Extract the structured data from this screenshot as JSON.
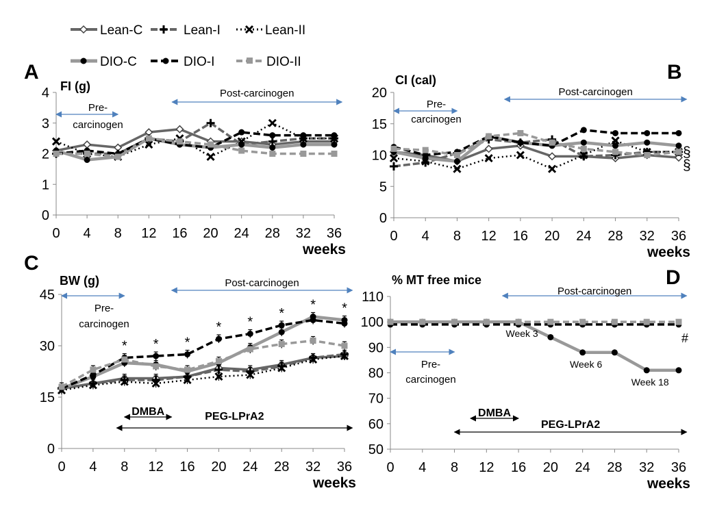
{
  "legend": {
    "row1": [
      "Lean-C",
      "Lean-I",
      "Lean-II"
    ],
    "row2": [
      "DIO-C",
      "DIO-I",
      "DIO-II"
    ]
  },
  "colors": {
    "dark_gray": "#666666",
    "black": "#000000",
    "light_gray": "#999999",
    "arrow_blue": "#4f81bd"
  },
  "labels": {
    "pre_carcinogen": [
      "Pre-",
      "carcinogen"
    ],
    "post_carcinogen": "Post-carcinogen",
    "weeks": "weeks",
    "dmba": "DMBA",
    "peg": "PEG-LPrA2"
  },
  "chart_data": [
    {
      "panel": "A",
      "type": "line",
      "ylabel": "FI (g)",
      "xlabel": "weeks",
      "x": [
        0,
        4,
        8,
        12,
        16,
        20,
        24,
        28,
        32,
        36
      ],
      "xticks": [
        "0",
        "4",
        "8",
        "12",
        "16",
        "20",
        "24",
        "28",
        "32",
        "36"
      ],
      "yticks": [
        "0",
        "1",
        "2",
        "3",
        "4"
      ],
      "ylim": [
        0,
        4
      ],
      "series": [
        {
          "name": "Lean-C",
          "values": [
            2.1,
            2.3,
            2.2,
            2.7,
            2.8,
            2.4,
            2.4,
            2.3,
            2.4,
            2.4
          ]
        },
        {
          "name": "Lean-I",
          "values": [
            2.0,
            2.0,
            2.0,
            2.5,
            2.4,
            3.0,
            2.3,
            2.4,
            2.5,
            2.5
          ]
        },
        {
          "name": "Lean-II",
          "values": [
            2.4,
            2.0,
            1.9,
            2.3,
            2.5,
            1.9,
            2.4,
            3.0,
            2.5,
            2.5
          ]
        },
        {
          "name": "DIO-C",
          "values": [
            2.1,
            1.8,
            1.9,
            2.5,
            2.3,
            2.2,
            2.3,
            2.2,
            2.3,
            2.3
          ]
        },
        {
          "name": "DIO-I",
          "values": [
            2.0,
            2.1,
            2.0,
            2.5,
            2.3,
            2.2,
            2.7,
            2.6,
            2.6,
            2.6
          ]
        },
        {
          "name": "DIO-II",
          "values": [
            2.0,
            2.0,
            1.9,
            2.5,
            2.4,
            2.3,
            2.1,
            2.0,
            2.0,
            2.0
          ]
        }
      ],
      "annotations": {
        "pre_carcinogen": [
          0,
          8
        ],
        "post_carcinogen": [
          15,
          37
        ]
      }
    },
    {
      "panel": "B",
      "type": "line",
      "ylabel": "CI (cal)",
      "xlabel": "weeks",
      "x": [
        0,
        4,
        8,
        12,
        16,
        20,
        24,
        28,
        32,
        36
      ],
      "xticks": [
        "0",
        "4",
        "8",
        "12",
        "16",
        "20",
        "24",
        "28",
        "32",
        "36"
      ],
      "yticks": [
        "0",
        "5",
        "10",
        "15",
        "20"
      ],
      "ylim": [
        0,
        20
      ],
      "series": [
        {
          "name": "Lean-C",
          "values": [
            10.5,
            10.0,
            9.0,
            11.0,
            11.5,
            9.8,
            9.8,
            9.5,
            10.0,
            9.6
          ]
        },
        {
          "name": "Lean-I",
          "values": [
            8.2,
            8.8,
            10.3,
            12.5,
            12.0,
            12.5,
            9.8,
            10.0,
            10.5,
            10.5
          ]
        },
        {
          "name": "Lean-II",
          "values": [
            9.5,
            9.0,
            7.8,
            9.5,
            10.0,
            7.8,
            10.0,
            12.3,
            10.5,
            10.5
          ]
        },
        {
          "name": "DIO-C",
          "values": [
            10.5,
            9.5,
            9.0,
            13.0,
            12.0,
            11.5,
            12.0,
            11.5,
            12.0,
            11.5
          ]
        },
        {
          "name": "DIO-I",
          "values": [
            11.3,
            10.0,
            10.5,
            13.0,
            12.0,
            11.5,
            14.0,
            13.5,
            13.5,
            13.5
          ]
        },
        {
          "name": "DIO-II",
          "values": [
            11.0,
            10.8,
            10.0,
            13.0,
            13.5,
            12.0,
            11.0,
            10.5,
            10.0,
            10.5
          ]
        }
      ],
      "annotations": {
        "pre_carcinogen": [
          0,
          8
        ],
        "post_carcinogen": [
          14,
          37
        ],
        "section_marks": [
          "§",
          "§"
        ]
      }
    },
    {
      "panel": "C",
      "type": "line",
      "ylabel": "BW (g)",
      "xlabel": "weeks",
      "x": [
        0,
        4,
        8,
        12,
        16,
        20,
        24,
        28,
        32,
        36
      ],
      "xticks": [
        "0",
        "4",
        "8",
        "12",
        "16",
        "20",
        "24",
        "28",
        "32",
        "36"
      ],
      "yticks": [
        "0",
        "15",
        "30",
        "45"
      ],
      "ylim": [
        0,
        45
      ],
      "series": [
        {
          "name": "Lean-C",
          "values": [
            17.5,
            19.0,
            20.5,
            20.5,
            21.0,
            23.5,
            23.0,
            24.5,
            26.5,
            27.0
          ]
        },
        {
          "name": "Lean-I",
          "values": [
            17.5,
            19.0,
            20.0,
            20.0,
            21.0,
            23.0,
            22.5,
            24.0,
            26.5,
            27.5
          ]
        },
        {
          "name": "Lean-II",
          "values": [
            17.0,
            18.5,
            19.5,
            19.0,
            20.0,
            21.0,
            21.5,
            23.5,
            26.0,
            27.0
          ]
        },
        {
          "name": "DIO-C",
          "values": [
            17.5,
            21.0,
            25.0,
            24.5,
            22.5,
            25.0,
            29.5,
            34.0,
            38.5,
            37.5
          ]
        },
        {
          "name": "DIO-I",
          "values": [
            17.5,
            21.5,
            26.5,
            27.0,
            27.5,
            32.0,
            33.5,
            36.0,
            37.5,
            36.5
          ]
        },
        {
          "name": "DIO-II",
          "values": [
            18.0,
            23.0,
            26.0,
            24.0,
            23.0,
            25.5,
            29.0,
            30.5,
            31.5,
            30.0
          ]
        }
      ],
      "stars_at": [
        8,
        12,
        16,
        20,
        24,
        28,
        32,
        36
      ],
      "annotations": {
        "pre_carcinogen": [
          0,
          8
        ],
        "post_carcinogen": [
          14,
          37
        ],
        "DMBA": [
          8,
          14
        ],
        "PEG-LPrA2": [
          7,
          37
        ]
      }
    },
    {
      "panel": "D",
      "type": "line",
      "ylabel": "% MT free mice",
      "xlabel": "weeks",
      "x": [
        0,
        4,
        8,
        12,
        16,
        20,
        24,
        28,
        32,
        36
      ],
      "xticks": [
        "0",
        "4",
        "8",
        "12",
        "16",
        "20",
        "24",
        "28",
        "32",
        "36"
      ],
      "yticks": [
        "50",
        "60",
        "70",
        "80",
        "90",
        "100",
        "110"
      ],
      "ylim": [
        50,
        110
      ],
      "series": [
        {
          "name": "DIO-C",
          "values": [
            100,
            100,
            100,
            100,
            100,
            94,
            88,
            88,
            81,
            81
          ]
        },
        {
          "name": "DIO-I",
          "values": [
            99,
            99,
            99,
            99,
            99,
            99,
            99,
            99,
            99,
            99
          ]
        },
        {
          "name": "DIO-II",
          "values": [
            100,
            100,
            100,
            100,
            100,
            100,
            100,
            100,
            100,
            100
          ]
        }
      ],
      "point_labels": [
        {
          "x": 16,
          "text": "Week 3"
        },
        {
          "x": 24,
          "text": "Week 6"
        },
        {
          "x": 32,
          "text": "Week 18"
        }
      ],
      "hash_mark": "#",
      "annotations": {
        "pre_carcinogen": [
          0,
          8
        ],
        "post_carcinogen": [
          14,
          37
        ],
        "DMBA": [
          10,
          16
        ],
        "PEG-LPrA2": [
          8,
          37
        ]
      }
    }
  ]
}
